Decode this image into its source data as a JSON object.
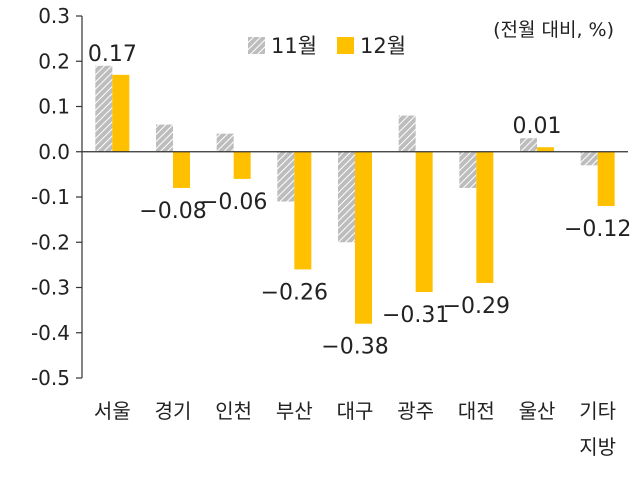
{
  "colors": {
    "nov_fill": "#bdbdbd",
    "nov_stripe": "#ffffff",
    "dec_fill": "#ffc000",
    "axis": "#333333",
    "text": "#222222"
  },
  "chart_data": {
    "type": "bar",
    "unit_note": "(전월 대비, %)",
    "categories": [
      "서울",
      "경기",
      "인천",
      "부산",
      "대구",
      "광주",
      "대전",
      "울산",
      "기타 지방"
    ],
    "category_lines": [
      [
        "서울"
      ],
      [
        "경기"
      ],
      [
        "인천"
      ],
      [
        "부산"
      ],
      [
        "대구"
      ],
      [
        "광주"
      ],
      [
        "대전"
      ],
      [
        "울산"
      ],
      [
        "기타",
        "지방"
      ]
    ],
    "series": [
      {
        "name": "11월",
        "values": [
          0.19,
          0.06,
          0.04,
          -0.11,
          -0.2,
          0.08,
          -0.08,
          0.03,
          -0.03
        ],
        "pattern": "hatched"
      },
      {
        "name": "12월",
        "values": [
          0.17,
          -0.08,
          -0.06,
          -0.26,
          -0.38,
          -0.31,
          -0.29,
          0.01,
          -0.12
        ],
        "pattern": "solid"
      }
    ],
    "data_labels": [
      {
        "category_index": 0,
        "series_index": 1,
        "text": "0.17"
      },
      {
        "category_index": 1,
        "series_index": 1,
        "text": "−0.08"
      },
      {
        "category_index": 2,
        "series_index": 1,
        "text": "−0.06"
      },
      {
        "category_index": 3,
        "series_index": 1,
        "text": "−0.26"
      },
      {
        "category_index": 4,
        "series_index": 1,
        "text": "−0.38"
      },
      {
        "category_index": 5,
        "series_index": 1,
        "text": "−0.31"
      },
      {
        "category_index": 6,
        "series_index": 1,
        "text": "−0.29"
      },
      {
        "category_index": 7,
        "series_index": 1,
        "text": "0.01"
      },
      {
        "category_index": 8,
        "series_index": 1,
        "text": "−0.12"
      }
    ],
    "yticks": [
      "0.3",
      "0.2",
      "0.1",
      "0.0",
      "-0.1",
      "-0.2",
      "-0.3",
      "-0.4",
      "-0.5"
    ],
    "ylim": [
      -0.5,
      0.3
    ],
    "grid": false,
    "legend_position": "top-center"
  }
}
